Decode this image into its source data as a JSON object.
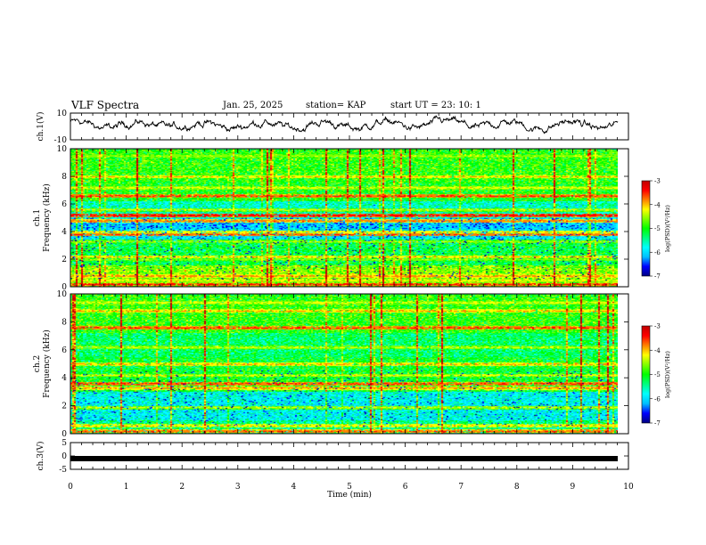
{
  "chart_data": [
    {
      "type": "line",
      "name": "ch1-waveform",
      "ylabel": "ch.1(V)",
      "ylim": [
        -10,
        10
      ],
      "yticks": [
        "10",
        "-10"
      ],
      "xlim": [
        0,
        10
      ],
      "description_values": "time series oscillating roughly between -6 and +8 V"
    },
    {
      "type": "heatmap",
      "name": "ch1-spectrogram",
      "ylabel": "ch.1\nFrequency (kHz)",
      "ylabel_line1": "ch.1",
      "ylabel_line2": "Frequency (kHz)",
      "ylim": [
        0,
        10
      ],
      "yticks": [
        "0",
        "2",
        "4",
        "6",
        "8",
        "10"
      ],
      "xlim": [
        0,
        9.8
      ],
      "colorbar": {
        "label": "log(PSD)(V²/Hz)",
        "range": [
          -7,
          -3
        ],
        "ticks": [
          "-3",
          "-4",
          "-5",
          "-6",
          "-7"
        ]
      },
      "bands_khz": [
        {
          "f": 0.2,
          "level": -3.4
        },
        {
          "f": 0.5,
          "level": -4.2
        },
        {
          "f": 0.8,
          "level": -3.8
        },
        {
          "f": 1.2,
          "level": -4.6
        },
        {
          "f": 2.0,
          "level": -4.5
        },
        {
          "f": 2.2,
          "level": -4.0
        },
        {
          "f": 3.3,
          "level": -4.4
        },
        {
          "f": 3.8,
          "level": -3.6
        },
        {
          "f": 4.0,
          "level": -4.1
        },
        {
          "f": 4.8,
          "level": -3.7
        },
        {
          "f": 5.2,
          "level": -3.3
        },
        {
          "f": 5.6,
          "level": -4.3
        },
        {
          "f": 6.6,
          "level": -3.5
        },
        {
          "f": 7.2,
          "level": -4.2
        },
        {
          "f": 8.0,
          "level": -4.0
        },
        {
          "f": 9.5,
          "level": -4.4
        }
      ],
      "background_profile": [
        {
          "f0": 0,
          "f1": 1.6,
          "level": -4.6
        },
        {
          "f0": 1.6,
          "f1": 3.2,
          "level": -5.2
        },
        {
          "f0": 3.2,
          "f1": 4.2,
          "level": -5.9
        },
        {
          "f0": 4.2,
          "f1": 5.0,
          "level": -6.1
        },
        {
          "f0": 5.0,
          "f1": 6.2,
          "level": -5.6
        },
        {
          "f0": 6.2,
          "f1": 7.6,
          "level": -5.0
        },
        {
          "f0": 7.6,
          "f1": 10,
          "level": -4.9
        }
      ]
    },
    {
      "type": "heatmap",
      "name": "ch2-spectrogram",
      "ylabel": "ch.2\nFrequency (kHz)",
      "ylabel_line1": "ch.2",
      "ylabel_line2": "Frequency (kHz)",
      "ylim": [
        0,
        10
      ],
      "yticks": [
        "0",
        "2",
        "4",
        "6",
        "8",
        "10"
      ],
      "xlim": [
        0,
        9.8
      ],
      "colorbar": {
        "label": "log(PSD)(V²/Hz)",
        "range": [
          -7,
          -3
        ],
        "ticks": [
          "-3",
          "-4",
          "-5",
          "-6",
          "-7"
        ]
      },
      "bands_khz": [
        {
          "f": 0.2,
          "level": -3.6
        },
        {
          "f": 0.6,
          "level": -4.0
        },
        {
          "f": 1.9,
          "level": -4.3
        },
        {
          "f": 3.3,
          "level": -3.8
        },
        {
          "f": 3.6,
          "level": -3.5
        },
        {
          "f": 4.2,
          "level": -4.2
        },
        {
          "f": 5.0,
          "level": -3.9
        },
        {
          "f": 6.2,
          "level": -4.3
        },
        {
          "f": 7.6,
          "level": -3.5
        },
        {
          "f": 8.8,
          "level": -3.9
        },
        {
          "f": 9.4,
          "level": -4.2
        }
      ],
      "background_profile": [
        {
          "f0": 0,
          "f1": 1.0,
          "level": -5.4
        },
        {
          "f0": 1.0,
          "f1": 3.0,
          "level": -5.8
        },
        {
          "f0": 3.0,
          "f1": 5.5,
          "level": -5.1
        },
        {
          "f0": 5.5,
          "f1": 7.2,
          "level": -5.3
        },
        {
          "f0": 7.2,
          "f1": 10,
          "level": -4.9
        }
      ]
    },
    {
      "type": "line",
      "name": "ch3-waveform",
      "ylabel": "ch.3(V)",
      "ylim": [
        -5,
        5
      ],
      "yticks": [
        "5",
        "0",
        "-5"
      ],
      "xlim": [
        0,
        10
      ],
      "xlabel": "Time (min)",
      "xticks": [
        "0",
        "1",
        "2",
        "3",
        "4",
        "5",
        "6",
        "7",
        "8",
        "9",
        "10"
      ],
      "constant_value": -1.0
    }
  ],
  "header": {
    "title": "VLF Spectra",
    "date": "Jan. 25, 2025",
    "station": "station= KAP",
    "start_time": "start  UT =   23: 10: 1"
  },
  "colors": {
    "colormap": [
      "#000080",
      "#0000ff",
      "#00bfff",
      "#00ffff",
      "#00ff80",
      "#00ff00",
      "#80ff00",
      "#ffff00",
      "#ff8000",
      "#ff0000",
      "#c00000",
      "#ffc0c0",
      "#ffffff"
    ],
    "axis": "#000000",
    "trace": "#000000"
  }
}
